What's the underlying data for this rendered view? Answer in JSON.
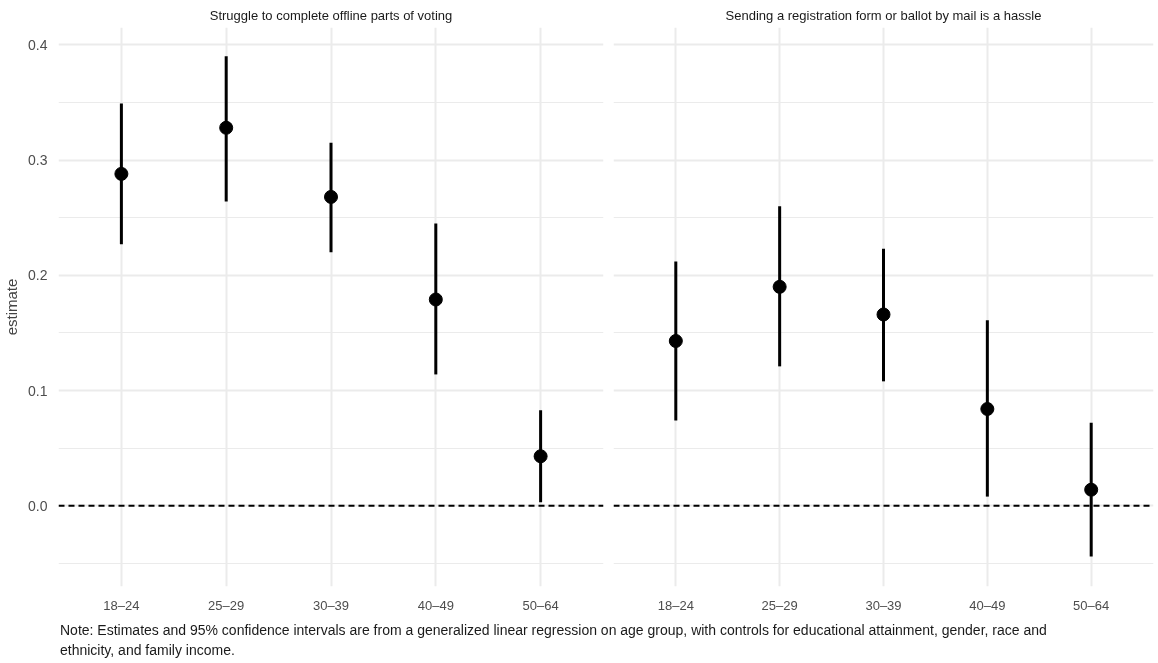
{
  "chart_data": [
    {
      "type": "scatter",
      "title": "Struggle to complete offline parts of voting",
      "ylabel": "estimate",
      "categories": [
        "18–24",
        "25–29",
        "30–39",
        "40–49",
        "50–64"
      ],
      "series": [
        {
          "color": "#000000",
          "values": [
            0.288,
            0.328,
            0.268,
            0.179,
            0.043
          ],
          "errors": [
            [
              0.227,
              0.349
            ],
            [
              0.264,
              0.39
            ],
            [
              0.22,
              0.315
            ],
            [
              0.114,
              0.245
            ],
            [
              0.003,
              0.083
            ]
          ]
        }
      ],
      "ylim": [
        -0.07,
        0.415
      ],
      "yticks": [
        {
          "value": -0.05,
          "label": null
        },
        {
          "value": 0.0,
          "label": "0.0"
        },
        {
          "value": 0.05,
          "label": null
        },
        {
          "value": 0.1,
          "label": "0.1"
        },
        {
          "value": 0.15,
          "label": null
        },
        {
          "value": 0.2,
          "label": "0.2"
        },
        {
          "value": 0.25,
          "label": null
        },
        {
          "value": 0.3,
          "label": "0.3"
        },
        {
          "value": 0.35,
          "label": null
        },
        {
          "value": 0.4,
          "label": "0.4"
        }
      ],
      "ref_lines": [
        {
          "axis": "y",
          "value": 0,
          "color": "#000000",
          "line_style": "dashed"
        }
      ],
      "grid": true,
      "marker": "circle",
      "annotations": [
        "Note: Estimates and 95% confidence intervals are from a generalized linear regression on age group, with controls for educational attainment, gender, race and ethnicity, and family income."
      ]
    },
    {
      "type": "scatter",
      "title": "Sending a registration form or ballot by mail is a hassle",
      "categories": [
        "18–24",
        "25–29",
        "30–39",
        "40–49",
        "50–64"
      ],
      "series": [
        {
          "color": "#000000",
          "values": [
            0.143,
            0.19,
            0.166,
            0.084,
            0.014
          ],
          "errors": [
            [
              0.074,
              0.212
            ],
            [
              0.121,
              0.26
            ],
            [
              0.108,
              0.223
            ],
            [
              0.008,
              0.161
            ],
            [
              -0.044,
              0.072
            ]
          ]
        }
      ],
      "ylim": [
        -0.07,
        0.415
      ],
      "yticks": [
        {
          "value": -0.05,
          "label": null
        },
        0.0,
        {
          "value": 0.05,
          "label": null
        },
        0.1,
        {
          "value": 0.15,
          "label": null
        },
        0.2,
        {
          "value": 0.25,
          "label": null
        },
        0.3,
        {
          "value": 0.35,
          "label": null
        },
        0.4
      ],
      "ref_lines": [
        {
          "axis": "y",
          "value": 0,
          "color": "#000000",
          "line_style": "dashed"
        }
      ],
      "grid": true,
      "marker": "circle",
      "tick_labels": "x"
    }
  ]
}
